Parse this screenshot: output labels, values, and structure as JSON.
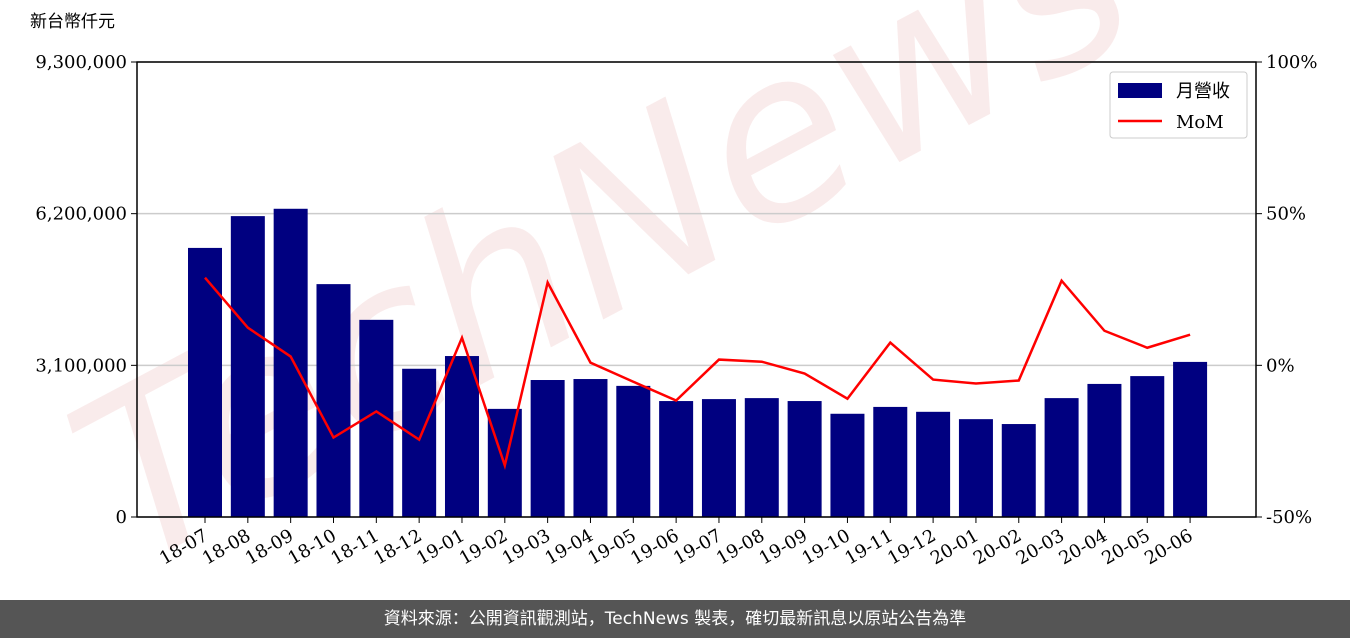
{
  "chart_data": {
    "type": "bar_line",
    "y_label": "新台幣仟元",
    "watermark": "TechNews",
    "footer": "資料來源：公開資訊觀測站，TechNews 製表，確切最新訊息以原站公告為準",
    "categories": [
      "18-07",
      "18-08",
      "18-09",
      "18-10",
      "18-11",
      "18-12",
      "19-01",
      "19-02",
      "19-03",
      "19-04",
      "19-05",
      "19-06",
      "19-07",
      "19-08",
      "19-09",
      "19-10",
      "19-11",
      "19-12",
      "20-01",
      "20-02",
      "20-03",
      "20-04",
      "20-05",
      "20-06"
    ],
    "series": [
      {
        "name": "月營收",
        "kind": "bar",
        "color": "#000080",
        "values": [
          5500000,
          6150000,
          6300000,
          4760000,
          4030000,
          3030000,
          3290000,
          2210000,
          2800000,
          2820000,
          2680000,
          2370000,
          2410000,
          2430000,
          2370000,
          2110000,
          2250000,
          2150000,
          2000000,
          1900000,
          2430000,
          2720000,
          2880000,
          3170000
        ]
      },
      {
        "name": "MoM",
        "kind": "line",
        "axis": "y2",
        "color": "#ff0000",
        "values": [
          28.9,
          12.4,
          2.9,
          -23.8,
          -15.2,
          -24.5,
          9.1,
          -33,
          27.3,
          0.9,
          -5.4,
          -11.6,
          1.9,
          1.2,
          -2.7,
          -11,
          7.5,
          -4.7,
          -6,
          -5,
          27.9,
          11.4,
          5.8,
          10.1
        ]
      }
    ],
    "ylim": [
      0,
      9300000
    ],
    "yticks": [
      0,
      {
        "value": 3100000,
        "label": "3,100,000"
      },
      {
        "value": 6200000,
        "label": "6,200,000"
      },
      {
        "value": 9300000,
        "label": "9,300,000"
      }
    ],
    "y2lim": [
      -50,
      100
    ],
    "y2ticks": [
      {
        "value": -50,
        "label": "-50%"
      },
      {
        "value": 0,
        "label": "0%"
      },
      {
        "value": 50,
        "label": "50%"
      },
      {
        "value": 100,
        "label": "100%"
      }
    ],
    "grid": true,
    "legend": "upper right"
  }
}
